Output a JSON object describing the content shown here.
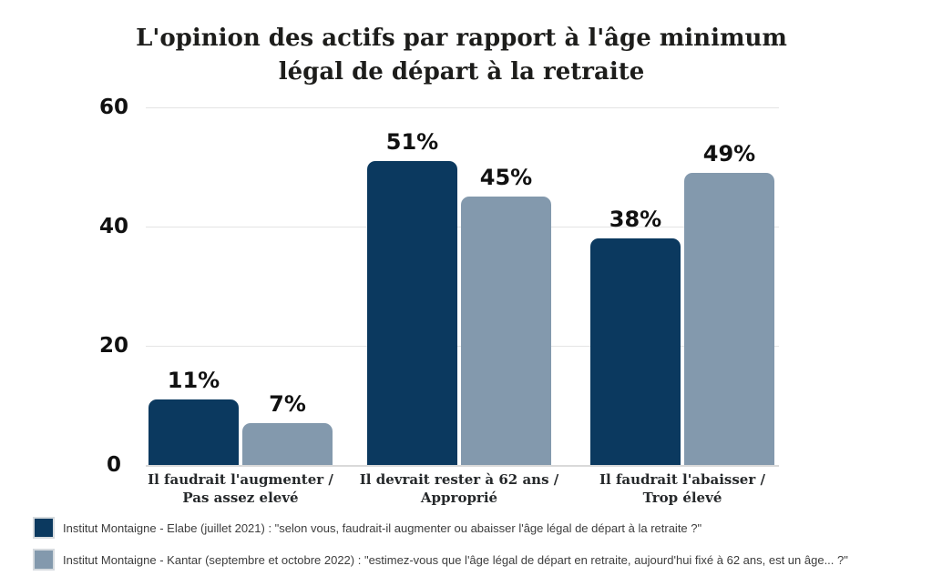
{
  "title": {
    "line1": "L'opinion des actifs par rapport à l'âge minimum",
    "line2": "légal de départ à la retraite"
  },
  "chart_data": {
    "type": "bar",
    "title": "L'opinion des actifs par rapport à l'âge minimum légal de départ à la retraite",
    "categories": [
      {
        "line1": "Il faudrait l'augmenter /",
        "line2": "Pas assez elevé"
      },
      {
        "line1": "Il devrait rester à 62 ans /",
        "line2": "Approprié"
      },
      {
        "line1": "Il faudrait l'abaisser /",
        "line2": "Trop élevé"
      }
    ],
    "series": [
      {
        "name": "Institut Montaigne - Elabe (juillet 2021) : \"selon vous, faudrait-il augmenter ou abaisser l'âge légal de départ à la retraite ?\"",
        "color": "#0B395F",
        "values": [
          11,
          51,
          38
        ]
      },
      {
        "name": "Institut Montaigne - Kantar (septembre et octobre 2022) : \"estimez-vous que l'âge légal de départ en retraite, aujourd'hui fixé à 62 ans, est un âge... ?\"",
        "color": "#8399AD",
        "values": [
          7,
          45,
          49
        ]
      }
    ],
    "value_suffix": "%",
    "yticks": [
      0,
      20,
      40,
      60
    ],
    "ylim": [
      0,
      60
    ],
    "grid": true,
    "legend_position": "bottom-left"
  },
  "colors": {
    "background": "#FFFFFF",
    "grid": "#E4E4E4",
    "baseline": "#D9D9D9",
    "title_text": "#1D1D1B",
    "axis_text": "#111111",
    "value_text": "#111111",
    "category_text": "#26292B",
    "legend_text": "#3D3D3D",
    "legend_swatch_border": "#D6DBDF"
  }
}
